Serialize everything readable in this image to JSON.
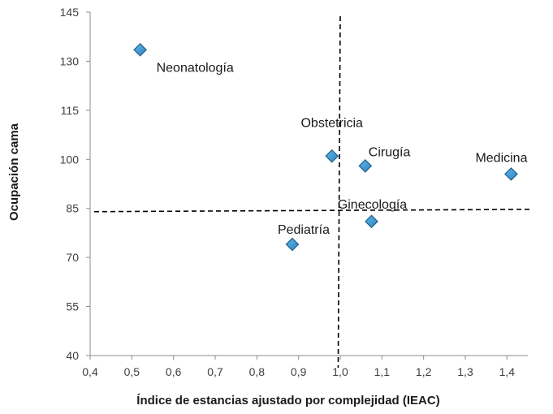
{
  "chart_data": {
    "type": "scatter",
    "title": "",
    "xlabel": "Índice de estancias ajustado por complejidad (IEAC)",
    "ylabel": "Ocupación cama",
    "xlim": [
      0.4,
      1.45
    ],
    "ylim": [
      40,
      145
    ],
    "x_ticks": [
      "0,4",
      "0,5",
      "0,6",
      "0,7",
      "0,8",
      "0,9",
      "1,0",
      "1,1",
      "1,2",
      "1,3",
      "1,4"
    ],
    "y_ticks": [
      "40",
      "55",
      "70",
      "85",
      "100",
      "115",
      "130",
      "145"
    ],
    "grid": false,
    "legend": "none",
    "marker": "diamond",
    "marker_color": "#2e86c1",
    "marker_edge_color": "#1f5f8b",
    "reference_lines": {
      "vertical_x": [
        1.0,
        0.995
      ],
      "horizontal_y": [
        84,
        84.7
      ],
      "style": "dashed",
      "color": "#000000"
    },
    "points": [
      {
        "label": "Neonatología",
        "x": 0.52,
        "y": 133.5
      },
      {
        "label": "Obstetricia",
        "x": 0.98,
        "y": 101
      },
      {
        "label": "Cirugía",
        "x": 1.06,
        "y": 98
      },
      {
        "label": "Medicina",
        "x": 1.41,
        "y": 95.5
      },
      {
        "label": "Ginecología",
        "x": 1.075,
        "y": 81
      },
      {
        "label": "Pediatría",
        "x": 0.885,
        "y": 74
      }
    ]
  }
}
